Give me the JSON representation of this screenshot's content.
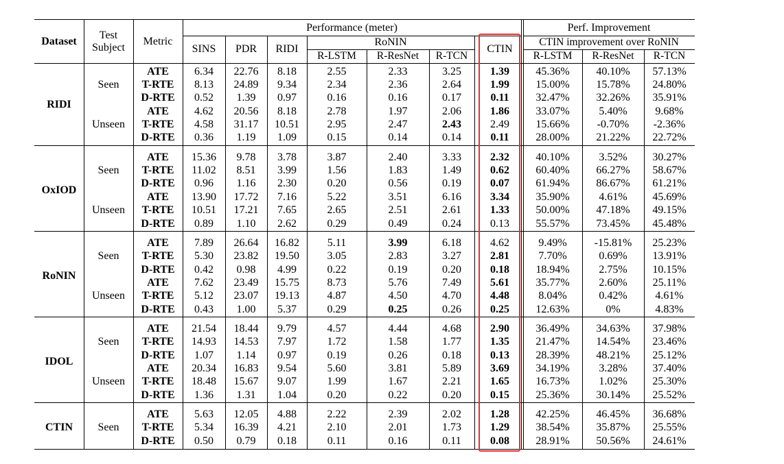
{
  "header": {
    "dataset": "Dataset",
    "test_subject": "Test\nSubject",
    "metric": "Metric",
    "performance": "Performance (meter)",
    "sins": "SINS",
    "pdr": "PDR",
    "ridi": "RIDI",
    "ronin": "RoNIN",
    "r_lstm": "R-LSTM",
    "r_resnet": "R-ResNet",
    "r_tcn": "R-TCN",
    "ctin": "CTIN",
    "perf_improvement": "Perf. Improvement",
    "ctin_improvement": "CTIN improvement over RoNIN",
    "imp_r_lstm": "R-LSTM",
    "imp_r_resnet": "R-ResNet",
    "imp_r_tcn": "R-TCN"
  },
  "highlight_color": "#e8312f",
  "datasets": [
    {
      "name": "RIDI",
      "groups": [
        {
          "subject": "Seen",
          "rows": [
            {
              "metric": "ATE",
              "v": [
                "6.34",
                "22.76",
                "8.18",
                "2.55",
                "2.33",
                "3.25",
                "1.39",
                "45.36%",
                "40.10%",
                "57.13%"
              ],
              "bold": [
                6
              ]
            },
            {
              "metric": "T-RTE",
              "v": [
                "8.13",
                "24.89",
                "9.34",
                "2.34",
                "2.36",
                "2.64",
                "1.99",
                "15.00%",
                "15.78%",
                "24.80%"
              ],
              "bold": [
                6
              ]
            },
            {
              "metric": "D-RTE",
              "v": [
                "0.52",
                "1.39",
                "0.97",
                "0.16",
                "0.16",
                "0.17",
                "0.11",
                "32.47%",
                "32.26%",
                "35.91%"
              ],
              "bold": [
                6
              ]
            }
          ]
        },
        {
          "subject": "Unseen",
          "rows": [
            {
              "metric": "ATE",
              "v": [
                "4.62",
                "20.56",
                "8.18",
                "2.78",
                "1.97",
                "2.06",
                "1.86",
                "33.07%",
                "5.40%",
                "9.68%"
              ],
              "bold": [
                6
              ]
            },
            {
              "metric": "T-RTE",
              "v": [
                "4.58",
                "31.17",
                "10.51",
                "2.95",
                "2.47",
                "2.43",
                "2.49",
                "15.66%",
                "-0.70%",
                "-2.36%"
              ],
              "bold": [
                5
              ]
            },
            {
              "metric": "D-RTE",
              "v": [
                "0.36",
                "1.19",
                "1.09",
                "0.15",
                "0.14",
                "0.14",
                "0.11",
                "28.00%",
                "21.22%",
                "22.72%"
              ],
              "bold": [
                6
              ]
            }
          ]
        }
      ]
    },
    {
      "name": "OxIOD",
      "groups": [
        {
          "subject": "Seen",
          "rows": [
            {
              "metric": "ATE",
              "v": [
                "15.36",
                "9.78",
                "3.78",
                "3.87",
                "2.40",
                "3.33",
                "2.32",
                "40.10%",
                "3.52%",
                "30.27%"
              ],
              "bold": [
                6
              ]
            },
            {
              "metric": "T-RTE",
              "v": [
                "11.02",
                "8.51",
                "3.99",
                "1.56",
                "1.83",
                "1.49",
                "0.62",
                "60.40%",
                "66.27%",
                "58.67%"
              ],
              "bold": [
                6
              ]
            },
            {
              "metric": "D-RTE",
              "v": [
                "0.96",
                "1.16",
                "2.30",
                "0.20",
                "0.56",
                "0.19",
                "0.07",
                "61.94%",
                "86.67%",
                "61.21%"
              ],
              "bold": [
                6
              ]
            }
          ]
        },
        {
          "subject": "Unseen",
          "rows": [
            {
              "metric": "ATE",
              "v": [
                "13.90",
                "17.72",
                "7.16",
                "5.22",
                "3.51",
                "6.16",
                "3.34",
                "35.90%",
                "4.61%",
                "45.69%"
              ],
              "bold": [
                6
              ]
            },
            {
              "metric": "T-RTE",
              "v": [
                "10.51",
                "17.21",
                "7.65",
                "2.65",
                "2.51",
                "2.61",
                "1.33",
                "50.00%",
                "47.18%",
                "49.15%"
              ],
              "bold": [
                6
              ]
            },
            {
              "metric": "D-RTE",
              "v": [
                "0.89",
                "1.10",
                "2.62",
                "0.29",
                "0.49",
                "0.24",
                "0.13",
                "55.57%",
                "73.45%",
                "45.48%"
              ],
              "bold": []
            }
          ]
        }
      ]
    },
    {
      "name": "RoNIN",
      "groups": [
        {
          "subject": "Seen",
          "rows": [
            {
              "metric": "ATE",
              "v": [
                "7.89",
                "26.64",
                "16.82",
                "5.11",
                "3.99",
                "6.18",
                "4.62",
                "9.49%",
                "-15.81%",
                "25.23%"
              ],
              "bold": [
                4
              ]
            },
            {
              "metric": "T-RTE",
              "v": [
                "5.30",
                "23.82",
                "19.50",
                "3.05",
                "2.83",
                "3.27",
                "2.81",
                "7.70%",
                "0.69%",
                "13.91%"
              ],
              "bold": [
                6
              ]
            },
            {
              "metric": "D-RTE",
              "v": [
                "0.42",
                "0.98",
                "4.99",
                "0.22",
                "0.19",
                "0.20",
                "0.18",
                "18.94%",
                "2.75%",
                "10.15%"
              ],
              "bold": [
                6
              ]
            }
          ]
        },
        {
          "subject": "Unseen",
          "rows": [
            {
              "metric": "ATE",
              "v": [
                "7.62",
                "23.49",
                "15.75",
                "8.73",
                "5.76",
                "7.49",
                "5.61",
                "35.77%",
                "2.60%",
                "25.11%"
              ],
              "bold": [
                6
              ]
            },
            {
              "metric": "T-RTE",
              "v": [
                "5.12",
                "23.07",
                "19.13",
                "4.87",
                "4.50",
                "4.70",
                "4.48",
                "8.04%",
                "0.42%",
                "4.61%"
              ],
              "bold": [
                6
              ]
            },
            {
              "metric": "D-RTE",
              "v": [
                "0.43",
                "1.00",
                "5.37",
                "0.29",
                "0.25",
                "0.26",
                "0.25",
                "12.63%",
                "0%",
                "4.83%"
              ],
              "bold": [
                4,
                6
              ]
            }
          ]
        }
      ]
    },
    {
      "name": "IDOL",
      "groups": [
        {
          "subject": "Seen",
          "rows": [
            {
              "metric": "ATE",
              "v": [
                "21.54",
                "18.44",
                "9.79",
                "4.57",
                "4.44",
                "4.68",
                "2.90",
                "36.49%",
                "34.63%",
                "37.98%"
              ],
              "bold": [
                6
              ]
            },
            {
              "metric": "T-RTE",
              "v": [
                "14.93",
                "14.53",
                "7.97",
                "1.72",
                "1.58",
                "1.77",
                "1.35",
                "21.47%",
                "14.54%",
                "23.46%"
              ],
              "bold": [
                6
              ]
            },
            {
              "metric": "D-RTE",
              "v": [
                "1.07",
                "1.14",
                "0.97",
                "0.19",
                "0.26",
                "0.18",
                "0.13",
                "28.39%",
                "48.21%",
                "25.12%"
              ],
              "bold": [
                6
              ]
            }
          ]
        },
        {
          "subject": "Unseen",
          "rows": [
            {
              "metric": "ATE",
              "v": [
                "20.34",
                "16.83",
                "9.54",
                "5.60",
                "3.81",
                "5.89",
                "3.69",
                "34.19%",
                "3.28%",
                "37.40%"
              ],
              "bold": [
                6
              ]
            },
            {
              "metric": "T-RTE",
              "v": [
                "18.48",
                "15.67",
                "9.07",
                "1.99",
                "1.67",
                "2.21",
                "1.65",
                "16.73%",
                "1.02%",
                "25.30%"
              ],
              "bold": [
                6
              ]
            },
            {
              "metric": "D-RTE",
              "v": [
                "1.36",
                "1.31",
                "1.04",
                "0.20",
                "0.22",
                "0.20",
                "0.15",
                "25.36%",
                "30.14%",
                "25.52%"
              ],
              "bold": [
                6
              ]
            }
          ]
        }
      ]
    },
    {
      "name": "CTIN",
      "groups": [
        {
          "subject": "Seen",
          "rows": [
            {
              "metric": "ATE",
              "v": [
                "5.63",
                "12.05",
                "4.88",
                "2.22",
                "2.39",
                "2.02",
                "1.28",
                "42.25%",
                "46.45%",
                "36.68%"
              ],
              "bold": [
                6
              ]
            },
            {
              "metric": "T-RTE",
              "v": [
                "5.34",
                "16.39",
                "4.21",
                "2.10",
                "2.01",
                "1.73",
                "1.29",
                "38.54%",
                "35.87%",
                "25.55%"
              ],
              "bold": [
                6
              ]
            },
            {
              "metric": "D-RTE",
              "v": [
                "0.50",
                "0.79",
                "0.18",
                "0.11",
                "0.16",
                "0.11",
                "0.08",
                "28.91%",
                "50.56%",
                "24.61%"
              ],
              "bold": [
                6
              ]
            }
          ]
        }
      ]
    }
  ]
}
